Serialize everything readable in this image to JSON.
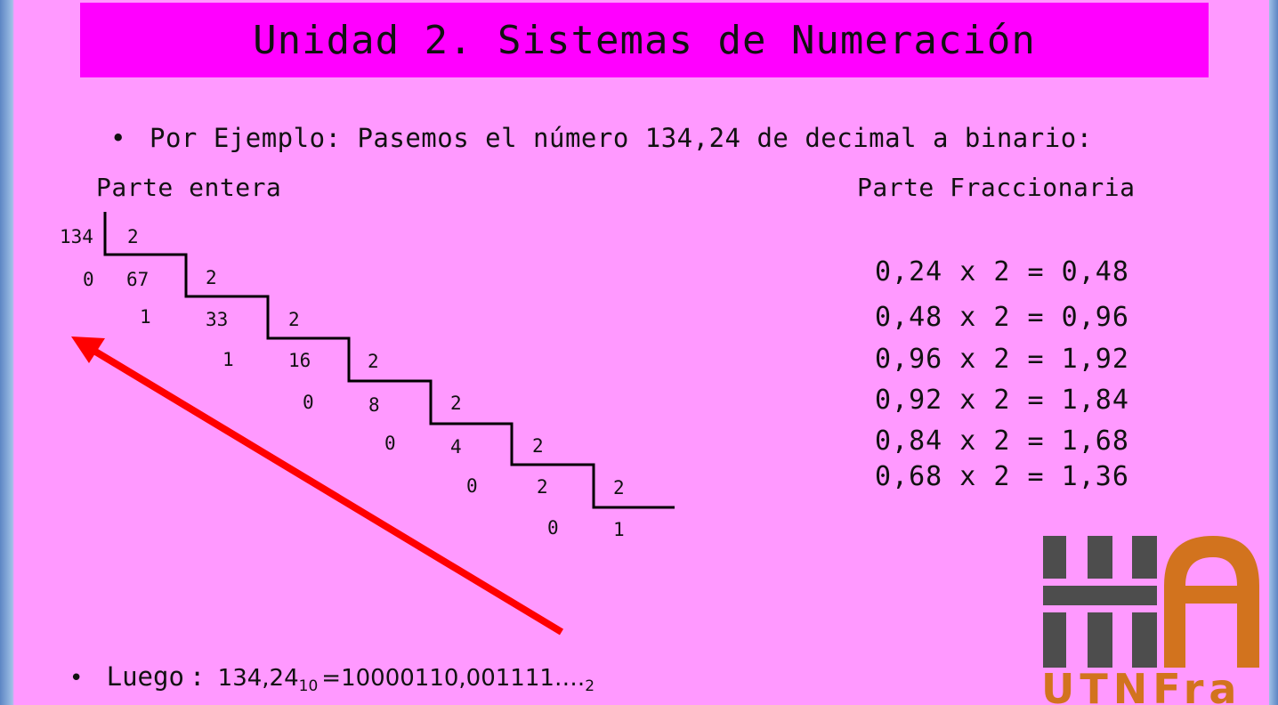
{
  "title": "Unidad 2. Sistemas de Numeración",
  "intro": {
    "bullet": "•",
    "text": "Por Ejemplo: Pasemos el número 134,24 de decimal a binario:"
  },
  "integer_part": {
    "heading": "Parte entera",
    "divisor": "2",
    "steps": [
      {
        "dividend": "134",
        "remainder": "0"
      },
      {
        "dividend": "67",
        "remainder": "1"
      },
      {
        "dividend": "33",
        "remainder": "1"
      },
      {
        "dividend": "16",
        "remainder": "0"
      },
      {
        "dividend": "8",
        "remainder": "0"
      },
      {
        "dividend": "4",
        "remainder": "0"
      },
      {
        "dividend": "2",
        "remainder": "0"
      }
    ],
    "final_quotient": "1"
  },
  "fractional_part": {
    "heading": "Parte Fraccionaria",
    "rows": [
      "0,24 x 2 = 0,48",
      "0,48 x 2 = 0,96",
      "0,96 x 2 = 1,92",
      "0,92 x 2 = 1,84",
      "0,84 x 2 = 1,68",
      "0,68 x 2 = 1,36"
    ]
  },
  "conclusion": {
    "bullet": "•",
    "label": "Luego",
    "colon": ":",
    "decimal_value": "134,24",
    "decimal_base": "10",
    "equals": "=",
    "binary_value": "10000110,001111….",
    "binary_base": "2"
  },
  "logo": {
    "text": "UTNFra",
    "colors": {
      "gray": "#4d4d4d",
      "orange": "#d2731e"
    }
  },
  "colors": {
    "title_bar": "#ff00ff",
    "background": "#ff99ff",
    "arrow": "#ff0000"
  }
}
